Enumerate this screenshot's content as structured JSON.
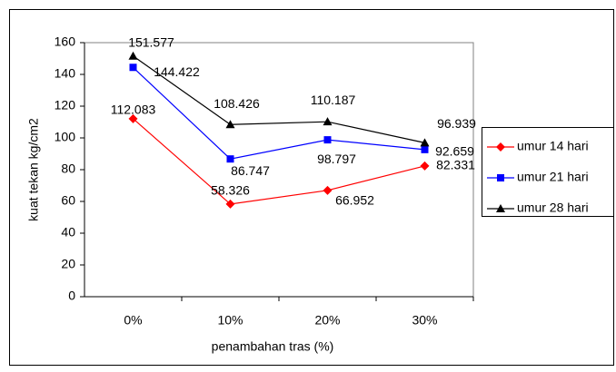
{
  "chart_data": {
    "type": "line",
    "x_label": "penambahan tras (%)",
    "y_label": "kuat tekan kg/cm2",
    "categories": [
      "0%",
      "10%",
      "20%",
      "30%"
    ],
    "series": [
      {
        "name": "umur 14 hari",
        "color": "#ff0000",
        "marker": "diamond",
        "values": [
          112.083,
          58.326,
          66.952,
          82.331
        ]
      },
      {
        "name": "umur 21 hari",
        "color": "#0000ff",
        "marker": "square",
        "values": [
          144.422,
          86.747,
          98.797,
          92.659
        ]
      },
      {
        "name": "umur 28 hari",
        "color": "#000000",
        "marker": "triangle",
        "values": [
          151.577,
          108.426,
          110.187,
          96.939
        ]
      }
    ],
    "ylim": [
      0,
      160
    ],
    "yticks": [
      0,
      20,
      40,
      60,
      80,
      100,
      120,
      140,
      160
    ],
    "grid": false,
    "legend": "right"
  }
}
